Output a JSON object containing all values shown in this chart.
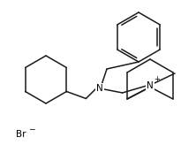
{
  "background": "#ffffff",
  "line_color": "#1a1a1a",
  "line_width": 1.1,
  "text_color": "#000000",
  "fig_width": 2.22,
  "fig_height": 1.81,
  "dpi": 100,
  "xlim": [
    0,
    222
  ],
  "ylim": [
    0,
    181
  ]
}
